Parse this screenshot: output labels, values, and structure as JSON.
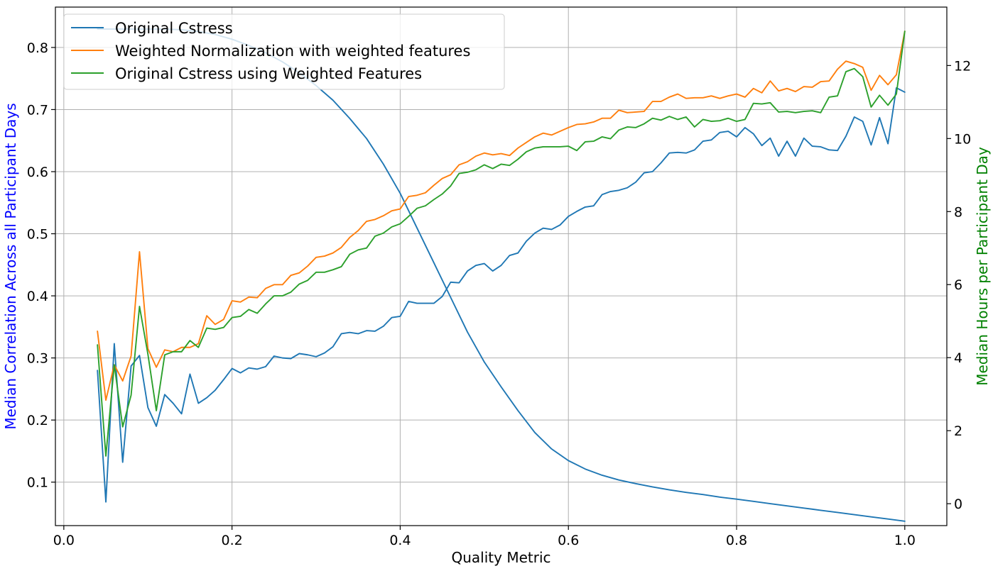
{
  "chart_data": {
    "type": "line",
    "xlabel": "Quality Metric",
    "ylabel_left": "Median Correlation Across all Participant Days",
    "ylabel_right": "Median Hours per Participant Day",
    "ylabel_left_color": "#0000ff",
    "ylabel_right_color": "#008000",
    "xlim": [
      -0.01,
      1.05
    ],
    "ylim_left": [
      0.03,
      0.865
    ],
    "ylim_right": [
      -0.6,
      13.6
    ],
    "x_ticks": [
      0.0,
      0.2,
      0.4,
      0.6,
      0.8,
      1.0
    ],
    "x_tick_labels": [
      "0.0",
      "0.2",
      "0.4",
      "0.6",
      "0.8",
      "1.0"
    ],
    "y_left_ticks": [
      0.1,
      0.2,
      0.3,
      0.4,
      0.5,
      0.6,
      0.7,
      0.8
    ],
    "y_left_tick_labels": [
      "0.1",
      "0.2",
      "0.3",
      "0.4",
      "0.5",
      "0.6",
      "0.7",
      "0.8"
    ],
    "y_right_ticks": [
      0,
      2,
      4,
      6,
      8,
      10,
      12
    ],
    "y_right_tick_labels": [
      "0",
      "2",
      "4",
      "6",
      "8",
      "10",
      "12"
    ],
    "grid": true,
    "legend_position": "top-left",
    "series": [
      {
        "name": "Original Cstress",
        "color": "#1f77b4",
        "axis": "left",
        "x": [
          0.04,
          0.05,
          0.06,
          0.07,
          0.08,
          0.09,
          0.1,
          0.11,
          0.12,
          0.13,
          0.14,
          0.15,
          0.16,
          0.17,
          0.18,
          0.19,
          0.2,
          0.21,
          0.22,
          0.23,
          0.24,
          0.25,
          0.26,
          0.27,
          0.28,
          0.29,
          0.3,
          0.31,
          0.32,
          0.33,
          0.34,
          0.35,
          0.36,
          0.37,
          0.38,
          0.39,
          0.4,
          0.41,
          0.42,
          0.43,
          0.44,
          0.45,
          0.46,
          0.47,
          0.48,
          0.49,
          0.5,
          0.51,
          0.52,
          0.53,
          0.54,
          0.55,
          0.56,
          0.57,
          0.58,
          0.59,
          0.6,
          0.61,
          0.62,
          0.63,
          0.64,
          0.65,
          0.66,
          0.67,
          0.68,
          0.69,
          0.7,
          0.71,
          0.72,
          0.73,
          0.74,
          0.75,
          0.76,
          0.77,
          0.78,
          0.79,
          0.8,
          0.81,
          0.82,
          0.83,
          0.84,
          0.85,
          0.86,
          0.87,
          0.88,
          0.89,
          0.9,
          0.91,
          0.92,
          0.93,
          0.94,
          0.95,
          0.96,
          0.97,
          0.98,
          0.99,
          1.0
        ],
        "values": [
          0.28,
          0.068,
          0.323,
          0.132,
          0.287,
          0.304,
          0.22,
          0.19,
          0.241,
          0.227,
          0.21,
          0.274,
          0.227,
          0.236,
          0.248,
          0.265,
          0.283,
          0.276,
          0.284,
          0.282,
          0.286,
          0.303,
          0.3,
          0.299,
          0.307,
          0.305,
          0.302,
          0.308,
          0.318,
          0.339,
          0.341,
          0.339,
          0.344,
          0.343,
          0.351,
          0.365,
          0.367,
          0.391,
          0.388,
          0.388,
          0.388,
          0.399,
          0.422,
          0.421,
          0.44,
          0.449,
          0.452,
          0.44,
          0.449,
          0.465,
          0.469,
          0.488,
          0.501,
          0.509,
          0.507,
          0.514,
          0.528,
          0.536,
          0.543,
          0.545,
          0.563,
          0.568,
          0.57,
          0.574,
          0.583,
          0.598,
          0.6,
          0.614,
          0.63,
          0.631,
          0.63,
          0.635,
          0.649,
          0.651,
          0.663,
          0.665,
          0.656,
          0.671,
          0.661,
          0.642,
          0.654,
          0.625,
          0.649,
          0.625,
          0.654,
          0.641,
          0.64,
          0.635,
          0.634,
          0.657,
          0.688,
          0.681,
          0.643,
          0.687,
          0.645,
          0.735,
          0.728
        ]
      },
      {
        "name": "Weighted Normalization with weighted features",
        "color": "#ff7f0e",
        "axis": "left",
        "x": [
          0.04,
          0.05,
          0.06,
          0.07,
          0.08,
          0.09,
          0.1,
          0.11,
          0.12,
          0.13,
          0.14,
          0.15,
          0.16,
          0.17,
          0.18,
          0.19,
          0.2,
          0.21,
          0.22,
          0.23,
          0.24,
          0.25,
          0.26,
          0.27,
          0.28,
          0.29,
          0.3,
          0.31,
          0.32,
          0.33,
          0.34,
          0.35,
          0.36,
          0.37,
          0.38,
          0.39,
          0.4,
          0.41,
          0.42,
          0.43,
          0.44,
          0.45,
          0.46,
          0.47,
          0.48,
          0.49,
          0.5,
          0.51,
          0.52,
          0.53,
          0.54,
          0.55,
          0.56,
          0.57,
          0.58,
          0.59,
          0.6,
          0.61,
          0.62,
          0.63,
          0.64,
          0.65,
          0.66,
          0.67,
          0.68,
          0.69,
          0.7,
          0.71,
          0.72,
          0.73,
          0.74,
          0.75,
          0.76,
          0.77,
          0.78,
          0.79,
          0.8,
          0.81,
          0.82,
          0.83,
          0.84,
          0.85,
          0.86,
          0.87,
          0.88,
          0.89,
          0.9,
          0.91,
          0.92,
          0.93,
          0.94,
          0.95,
          0.96,
          0.97,
          0.98,
          0.99,
          1.0
        ],
        "values": [
          0.343,
          0.232,
          0.289,
          0.263,
          0.303,
          0.471,
          0.315,
          0.285,
          0.313,
          0.31,
          0.317,
          0.317,
          0.323,
          0.368,
          0.354,
          0.362,
          0.392,
          0.39,
          0.398,
          0.397,
          0.412,
          0.418,
          0.418,
          0.433,
          0.437,
          0.448,
          0.462,
          0.464,
          0.469,
          0.478,
          0.494,
          0.505,
          0.52,
          0.523,
          0.529,
          0.537,
          0.54,
          0.56,
          0.562,
          0.566,
          0.578,
          0.589,
          0.595,
          0.611,
          0.616,
          0.625,
          0.63,
          0.627,
          0.629,
          0.626,
          0.638,
          0.647,
          0.656,
          0.662,
          0.659,
          0.665,
          0.671,
          0.676,
          0.677,
          0.68,
          0.686,
          0.686,
          0.699,
          0.695,
          0.696,
          0.697,
          0.713,
          0.713,
          0.72,
          0.725,
          0.718,
          0.719,
          0.719,
          0.722,
          0.718,
          0.722,
          0.725,
          0.72,
          0.734,
          0.727,
          0.746,
          0.73,
          0.734,
          0.729,
          0.737,
          0.736,
          0.745,
          0.746,
          0.765,
          0.778,
          0.774,
          0.768,
          0.731,
          0.755,
          0.74,
          0.756,
          0.826
        ]
      },
      {
        "name": "Original Cstress using Weighted Features",
        "color": "#2ca02c",
        "axis": "left",
        "x": [
          0.04,
          0.05,
          0.06,
          0.07,
          0.08,
          0.09,
          0.1,
          0.11,
          0.12,
          0.13,
          0.14,
          0.15,
          0.16,
          0.17,
          0.18,
          0.19,
          0.2,
          0.21,
          0.22,
          0.23,
          0.24,
          0.25,
          0.26,
          0.27,
          0.28,
          0.29,
          0.3,
          0.31,
          0.32,
          0.33,
          0.34,
          0.35,
          0.36,
          0.37,
          0.38,
          0.39,
          0.4,
          0.41,
          0.42,
          0.43,
          0.44,
          0.45,
          0.46,
          0.47,
          0.48,
          0.49,
          0.5,
          0.51,
          0.52,
          0.53,
          0.54,
          0.55,
          0.56,
          0.57,
          0.58,
          0.59,
          0.6,
          0.61,
          0.62,
          0.63,
          0.64,
          0.65,
          0.66,
          0.67,
          0.68,
          0.69,
          0.7,
          0.71,
          0.72,
          0.73,
          0.74,
          0.75,
          0.76,
          0.77,
          0.78,
          0.79,
          0.8,
          0.81,
          0.82,
          0.83,
          0.84,
          0.85,
          0.86,
          0.87,
          0.88,
          0.89,
          0.9,
          0.91,
          0.92,
          0.93,
          0.94,
          0.95,
          0.96,
          0.97,
          0.98,
          0.99,
          1.0
        ],
        "values": [
          0.321,
          0.142,
          0.289,
          0.189,
          0.24,
          0.383,
          0.306,
          0.215,
          0.305,
          0.31,
          0.31,
          0.328,
          0.317,
          0.348,
          0.346,
          0.349,
          0.365,
          0.367,
          0.378,
          0.372,
          0.387,
          0.4,
          0.4,
          0.406,
          0.419,
          0.425,
          0.438,
          0.438,
          0.442,
          0.447,
          0.467,
          0.474,
          0.477,
          0.496,
          0.501,
          0.511,
          0.516,
          0.528,
          0.541,
          0.545,
          0.555,
          0.564,
          0.577,
          0.597,
          0.599,
          0.603,
          0.611,
          0.605,
          0.612,
          0.61,
          0.62,
          0.632,
          0.638,
          0.64,
          0.64,
          0.64,
          0.641,
          0.634,
          0.648,
          0.649,
          0.656,
          0.653,
          0.667,
          0.672,
          0.671,
          0.677,
          0.686,
          0.683,
          0.689,
          0.684,
          0.688,
          0.672,
          0.684,
          0.681,
          0.682,
          0.686,
          0.681,
          0.684,
          0.71,
          0.709,
          0.711,
          0.696,
          0.697,
          0.695,
          0.697,
          0.698,
          0.695,
          0.72,
          0.722,
          0.761,
          0.766,
          0.753,
          0.704,
          0.723,
          0.707,
          0.725,
          0.826
        ]
      },
      {
        "name": "Median Hours per Participant Day",
        "color": "#1f77b4",
        "axis": "right",
        "x": [
          0.04,
          0.06,
          0.08,
          0.1,
          0.12,
          0.14,
          0.16,
          0.18,
          0.2,
          0.22,
          0.24,
          0.26,
          0.28,
          0.3,
          0.32,
          0.34,
          0.36,
          0.38,
          0.4,
          0.42,
          0.44,
          0.46,
          0.48,
          0.5,
          0.52,
          0.54,
          0.56,
          0.58,
          0.6,
          0.62,
          0.64,
          0.66,
          0.68,
          0.7,
          0.72,
          0.74,
          0.76,
          0.78,
          0.8,
          0.82,
          0.84,
          0.86,
          0.88,
          0.9,
          0.92,
          0.94,
          0.96,
          0.98,
          1.0
        ],
        "values": [
          13.0,
          13.0,
          13.0,
          13.0,
          13.0,
          12.98,
          12.93,
          12.85,
          12.72,
          12.55,
          12.35,
          12.1,
          11.8,
          11.45,
          11.05,
          10.55,
          10.0,
          9.3,
          8.5,
          7.55,
          6.6,
          5.65,
          4.7,
          3.88,
          3.2,
          2.55,
          1.95,
          1.5,
          1.18,
          0.95,
          0.78,
          0.65,
          0.55,
          0.46,
          0.38,
          0.31,
          0.25,
          0.18,
          0.125,
          0.065,
          0.0,
          -0.06,
          -0.12,
          -0.18,
          -0.24,
          -0.3,
          -0.36,
          -0.42,
          -0.48
        ]
      }
    ]
  }
}
